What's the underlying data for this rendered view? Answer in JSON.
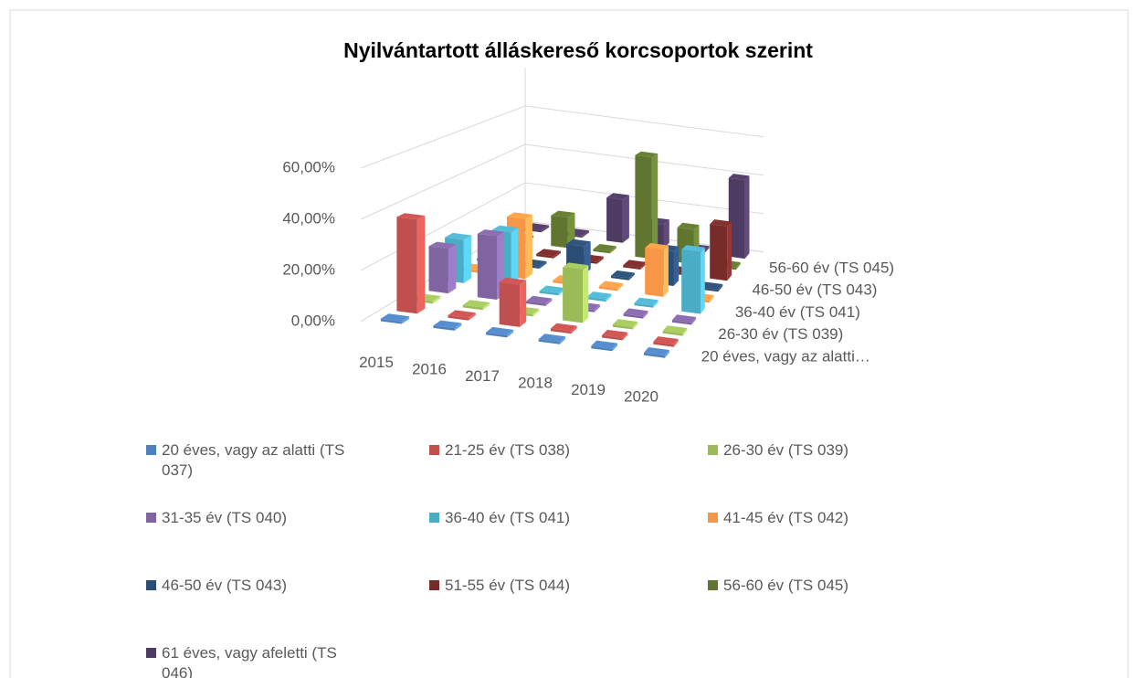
{
  "chart_data": {
    "type": "bar3d",
    "title": "Nyilvántartott álláskereső korcsoportok szerint",
    "categories": [
      "2015",
      "2016",
      "2017",
      "2018",
      "2019",
      "2020"
    ],
    "ylim": [
      0,
      80
    ],
    "yticks": [
      {
        "value": 0,
        "label": "0,00%"
      },
      {
        "value": 20,
        "label": "20,00%"
      },
      {
        "value": 40,
        "label": "40,00%"
      },
      {
        "value": 60,
        "label": "60,00%"
      }
    ],
    "depth_labels": [
      "20 éves, vagy az alatti…",
      null,
      "26-30 év (TS 039)",
      null,
      "36-40 év (TS 041)",
      null,
      "46-50 év (TS 043)",
      null,
      "56-60 év (TS 045)",
      null
    ],
    "series": [
      {
        "name": "20 éves, vagy az alatti (TS 037)",
        "color": "#4f81bd",
        "values": [
          1,
          1,
          1,
          1,
          1,
          1
        ]
      },
      {
        "name": "21-25 év (TS 038)",
        "color": "#c0504d",
        "values": [
          38,
          1,
          17,
          1,
          1,
          1
        ]
      },
      {
        "name": "26-30 év (TS 039)",
        "color": "#9bbb59",
        "values": [
          1,
          1,
          1,
          22,
          1,
          1
        ]
      },
      {
        "name": "31-35 év (TS 040)",
        "color": "#8064a2",
        "values": [
          19,
          27,
          1,
          1,
          1,
          1
        ]
      },
      {
        "name": "36-40 év (TS 041)",
        "color": "#4bacc6",
        "values": [
          19,
          25,
          1,
          1,
          1,
          27
        ]
      },
      {
        "name": "41-45 év (TS 042)",
        "color": "#f79646",
        "values": [
          1,
          27,
          1,
          1,
          21,
          1
        ]
      },
      {
        "name": "46-50 év (TS 043)",
        "color": "#2c4d75",
        "values": [
          1,
          1,
          13,
          1,
          16,
          1
        ]
      },
      {
        "name": "51-55 év (TS 044)",
        "color": "#772c2a",
        "values": [
          1,
          1,
          1,
          1,
          1,
          26
        ]
      },
      {
        "name": "56-60 év (TS 045)",
        "color": "#5f7530",
        "values": [
          1,
          15,
          1,
          50,
          17,
          1
        ]
      },
      {
        "name": "61 éves, vagy afeletti (TS 046)",
        "color": "#4d3b62",
        "values": [
          1,
          1,
          22,
          12,
          1,
          40
        ]
      }
    ]
  }
}
